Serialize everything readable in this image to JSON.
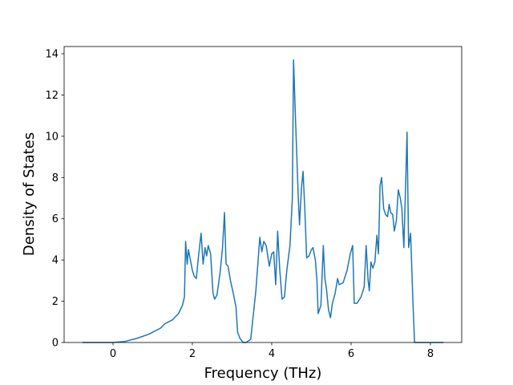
{
  "chart_data": {
    "type": "line",
    "xlabel": "Frequency (THz)",
    "ylabel": "Density of States",
    "color": "#1f77b4",
    "x": [
      -0.77,
      0,
      0.3,
      0.6,
      0.9,
      1.2,
      1.3,
      1.5,
      1.65,
      1.75,
      1.8,
      1.83,
      1.87,
      1.9,
      2.0,
      2.05,
      2.1,
      2.15,
      2.22,
      2.27,
      2.32,
      2.36,
      2.4,
      2.46,
      2.52,
      2.56,
      2.62,
      2.7,
      2.76,
      2.81,
      2.85,
      2.9,
      2.96,
      3.03,
      3.1,
      3.14,
      3.2,
      3.28,
      3.35,
      3.47,
      3.6,
      3.7,
      3.75,
      3.8,
      3.86,
      3.94,
      4.0,
      4.05,
      4.1,
      4.15,
      4.2,
      4.26,
      4.32,
      4.38,
      4.46,
      4.52,
      4.55,
      4.6,
      4.67,
      4.7,
      4.75,
      4.79,
      4.84,
      4.88,
      4.94,
      5.0,
      5.04,
      5.1,
      5.14,
      5.17,
      5.24,
      5.3,
      5.34,
      5.38,
      5.43,
      5.48,
      5.53,
      5.6,
      5.66,
      5.7,
      5.8,
      5.9,
      5.98,
      6.04,
      6.08,
      6.15,
      6.25,
      6.33,
      6.38,
      6.43,
      6.46,
      6.5,
      6.55,
      6.6,
      6.65,
      6.69,
      6.73,
      6.77,
      6.82,
      6.87,
      6.92,
      6.96,
      7.0,
      7.05,
      7.09,
      7.14,
      7.19,
      7.24,
      7.28,
      7.33,
      7.38,
      7.41,
      7.45,
      7.5,
      7.56,
      7.6,
      8.33
    ],
    "values": [
      0,
      0,
      0.05,
      0.2,
      0.4,
      0.7,
      0.9,
      1.1,
      1.4,
      1.8,
      2.2,
      4.9,
      3.8,
      4.5,
      3.5,
      3.2,
      3.1,
      4.1,
      5.3,
      3.8,
      4.6,
      4.2,
      4.7,
      4.3,
      2.4,
      2.1,
      2.3,
      3.4,
      4.6,
      6.3,
      3.8,
      3.7,
      3.0,
      2.4,
      1.7,
      0.5,
      0.2,
      0,
      0,
      0.15,
      2.5,
      5.1,
      4.4,
      4.9,
      4.7,
      3.7,
      4.3,
      4.4,
      2.8,
      5.4,
      3.6,
      2.1,
      2.2,
      3.5,
      4.7,
      7.0,
      13.7,
      10.8,
      7.0,
      5.7,
      7.5,
      8.3,
      6.2,
      4.1,
      4.2,
      4.5,
      4.6,
      4.0,
      3.0,
      1.4,
      1.8,
      4.7,
      3.1,
      2.6,
      1.6,
      1.2,
      1.9,
      2.4,
      3.1,
      2.8,
      2.9,
      3.5,
      4.3,
      4.7,
      1.9,
      1.9,
      2.2,
      2.7,
      4.7,
      3.0,
      2.5,
      3.9,
      3.6,
      3.9,
      5.2,
      4.3,
      7.6,
      8.0,
      6.5,
      6.2,
      6.1,
      6.7,
      6.3,
      6.2,
      5.4,
      5.9,
      7.4,
      7.0,
      6.5,
      4.6,
      8.0,
      10.2,
      4.6,
      5.3,
      1.9,
      0,
      0
    ],
    "xlim": [
      -1.232,
      8.788
    ],
    "ylim": [
      0,
      14.35
    ],
    "xticks": [
      0,
      2,
      4,
      6,
      8
    ],
    "yticks": [
      0,
      2,
      4,
      6,
      8,
      10,
      12,
      14
    ]
  }
}
